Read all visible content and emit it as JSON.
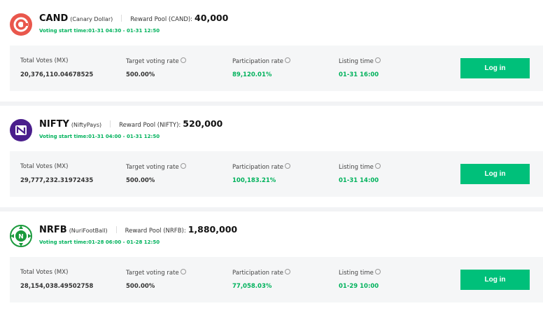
{
  "cards": [
    {
      "symbol": "CAND",
      "name": "(Canary Dollar)",
      "reward_label": "Reward Pool (CAND):",
      "reward_amount": "40,000",
      "voting_time": "Voting start time:01-31 04:30 - 01-31 12:50",
      "stats": [
        {
          "label": "Total Votes (MX)",
          "value": "20,376,110.04678525"
        },
        {
          "label": "Target voting rate",
          "value": "500.00%"
        },
        {
          "label": "Participation rate",
          "value": "89,120.01%"
        },
        {
          "label": "Listing time",
          "value": "01-31 16:00"
        }
      ],
      "button": "Log in"
    },
    {
      "symbol": "NIFTY",
      "name": "(NiftyPays)",
      "reward_label": "Reward Pool (NIFTY):",
      "reward_amount": "520,000",
      "voting_time": "Voting start time:01-31 04:00 - 01-31 12:50",
      "stats": [
        {
          "label": "Total Votes (MX)",
          "value": "29,777,232.31972435"
        },
        {
          "label": "Target voting rate",
          "value": "500.00%"
        },
        {
          "label": "Participation rate",
          "value": "100,183.21%"
        },
        {
          "label": "Listing time",
          "value": "01-31 14:00"
        }
      ],
      "button": "Log in"
    },
    {
      "symbol": "NRFB",
      "name": "(NuriFootBall)",
      "reward_label": "Reward Pool (NRFB):",
      "reward_amount": "1,880,000",
      "voting_time": "Voting start time:01-28 06:00 - 01-28 12:50",
      "stats": [
        {
          "label": "Total Votes (MX)",
          "value": "28,154,038.49502758"
        },
        {
          "label": "Target voting rate",
          "value": "500.00%"
        },
        {
          "label": "Participation rate",
          "value": "77,058.03%"
        },
        {
          "label": "Listing time",
          "value": "01-29 10:00"
        }
      ],
      "button": "Log in"
    }
  ]
}
